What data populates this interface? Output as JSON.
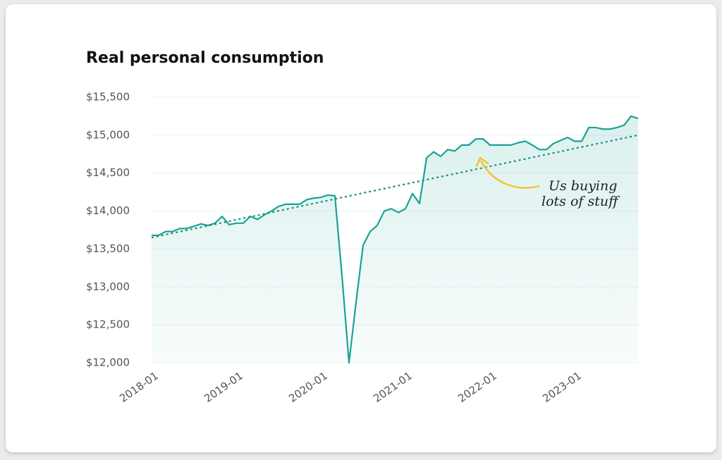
{
  "chart_data": {
    "type": "line",
    "title": "Real personal consumption",
    "x": [
      "2018-01",
      null,
      null,
      null,
      null,
      null,
      null,
      null,
      null,
      null,
      null,
      null,
      "2019-01",
      null,
      null,
      null,
      null,
      null,
      null,
      null,
      null,
      null,
      null,
      null,
      "2020-01",
      null,
      null,
      null,
      null,
      null,
      null,
      null,
      null,
      null,
      null,
      null,
      "2021-01",
      null,
      null,
      null,
      null,
      null,
      null,
      null,
      null,
      null,
      null,
      null,
      "2022-01",
      null,
      null,
      null,
      null,
      null,
      null,
      null,
      null,
      null,
      null,
      null,
      "2023-01",
      null,
      null,
      null,
      null,
      null,
      null,
      null,
      null,
      null
    ],
    "series": [
      {
        "color": "#1aa394",
        "values": [
          13680,
          13680,
          13730,
          13730,
          13770,
          13770,
          13800,
          13830,
          13810,
          13840,
          13930,
          13820,
          13840,
          13840,
          13930,
          13890,
          13950,
          14000,
          14060,
          14090,
          14090,
          14090,
          14150,
          14170,
          14180,
          14210,
          14200,
          13150,
          12000,
          12800,
          13550,
          13730,
          13810,
          14000,
          14030,
          13980,
          14030,
          14230,
          14100,
          14700,
          14780,
          14720,
          14810,
          14790,
          14870,
          14870,
          14950,
          14950,
          14870,
          14870,
          14870,
          14870,
          14900,
          14920,
          14870,
          14810,
          14810,
          14890,
          14930,
          14970,
          14920,
          14920,
          15100,
          15100,
          15080,
          15080,
          15100,
          15130,
          15250,
          15220
        ]
      }
    ],
    "trend": {
      "color": "#1a8f82",
      "values": [
        13650,
        15000
      ]
    },
    "annotation": [
      "Us buying",
      "lots of stuff"
    ],
    "ylim": [
      12000,
      15500
    ],
    "yticks": [
      {
        "value": 12000,
        "label": "$12,000"
      },
      {
        "value": 12500,
        "label": "$12,500"
      },
      {
        "value": 13000,
        "label": "$13,000"
      },
      {
        "value": 13500,
        "label": "$13,500"
      },
      {
        "value": 14000,
        "label": "$14,000"
      },
      {
        "value": 14500,
        "label": "$14,500"
      },
      {
        "value": 15000,
        "label": "$15,000"
      },
      {
        "value": 15500,
        "label": "$15,500"
      }
    ],
    "grid": true
  }
}
